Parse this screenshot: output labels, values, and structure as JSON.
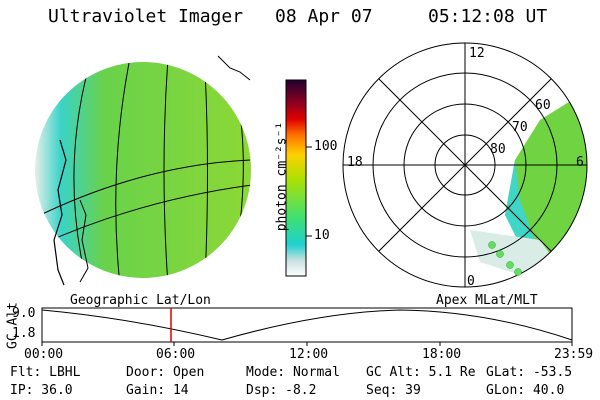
{
  "header": {
    "instrument": "Ultraviolet Imager",
    "date": "08 Apr 07",
    "time": "05:12:08 UT"
  },
  "colorbar": {
    "unit_label": "photon cm⁻²s⁻¹",
    "ticks": [
      "100",
      "10"
    ]
  },
  "polar_plot": {
    "mlt_labels": [
      "12",
      "18",
      "6",
      "0"
    ],
    "lat_labels": [
      "60",
      "70",
      "80"
    ]
  },
  "timeline": {
    "left_caption": "Geographic Lat/Lon",
    "right_caption": "Apex MLat/MLT",
    "axis_title": "GC Alt",
    "y_ticks": [
      "9.0",
      "1.8"
    ],
    "x_ticks": [
      "00:00",
      "06:00",
      "12:00",
      "18:00",
      "23:59"
    ]
  },
  "footer": {
    "row1": [
      "Flt: LBHL",
      "Door: Open",
      "Mode: Normal",
      "GC Alt: 5.1 Re",
      "GLat: -53.5"
    ],
    "row2": [
      "IP: 36.0",
      "Gain: 14",
      "Dsp:   -8.2",
      "Seq: 39",
      "GLon:  40.0"
    ]
  },
  "colors": {
    "aurora_green": "#7fd63a",
    "aurora_cyan": "#33d4d4",
    "time_marker": "#dd0000"
  }
}
